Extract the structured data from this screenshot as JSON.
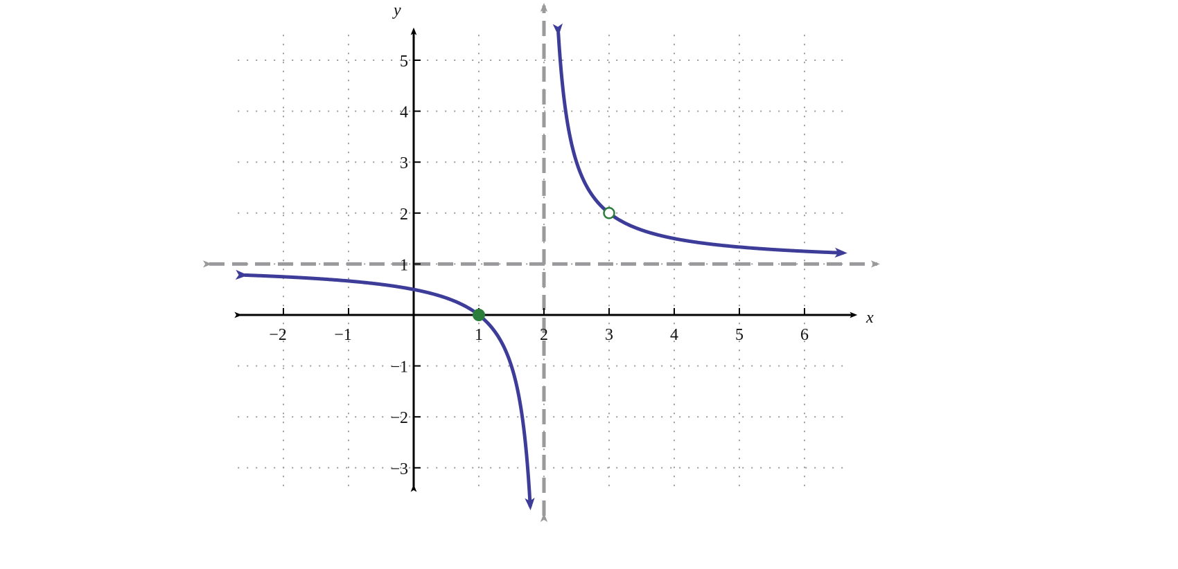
{
  "chart_data": {
    "type": "line",
    "title": "",
    "xlabel": "x",
    "ylabel": "y",
    "xlim": [
      -2.7,
      6.7
    ],
    "ylim": [
      -3.5,
      5.5
    ],
    "x_ticks": [
      -2,
      -1,
      1,
      2,
      3,
      4,
      5,
      6
    ],
    "y_ticks": [
      -3,
      -2,
      -1,
      1,
      2,
      3,
      4,
      5
    ],
    "x_tick_labels": [
      "−2",
      "−1",
      "1",
      "2",
      "3",
      "4",
      "5",
      "6"
    ],
    "y_tick_labels": [
      "−3",
      "−2",
      "−1",
      "1",
      "2",
      "3",
      "4",
      "5"
    ],
    "grid": true,
    "grid_style": "dotted",
    "function": "(x-1)/(x-2), x ≠ 3",
    "branches": [
      {
        "x_range": [
          -2.6,
          1.79
        ]
      },
      {
        "x_range": [
          2.22,
          6.6
        ]
      }
    ],
    "asymptotes": [
      {
        "type": "vertical",
        "x": 2
      },
      {
        "type": "horizontal",
        "y": 1
      }
    ],
    "points": [
      {
        "x": 1,
        "y": 0,
        "style": "closed"
      },
      {
        "x": 3,
        "y": 2,
        "style": "open"
      }
    ],
    "colors": {
      "curve": "#3d3d99",
      "asymptote": "#9a9a9c",
      "point": "#2a7d3a",
      "axis": "#000000",
      "grid": "#9a9a9a"
    }
  }
}
